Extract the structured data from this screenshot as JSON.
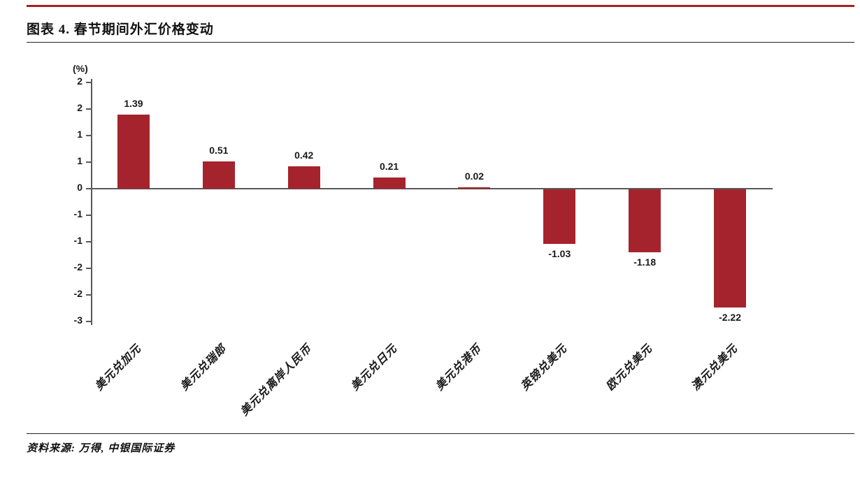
{
  "report": {
    "title": "图表 4. 春节期间外汇价格变动",
    "source_note": "资料来源: 万得, 中银国际证券"
  },
  "chart_data": {
    "type": "bar",
    "title": "图表 4. 春节期间外汇价格变动",
    "xlabel": "",
    "ylabel": "(%)",
    "categories": [
      "美元兑加元",
      "美元兑瑞郎",
      "美元兑离岸人民币",
      "美元兑日元",
      "美元兑港币",
      "英镑兑美元",
      "欧元兑美元",
      "澳元兑美元"
    ],
    "values": [
      1.39,
      0.51,
      0.42,
      0.21,
      0.02,
      -1.03,
      -1.18,
      -2.22
    ],
    "value_labels": [
      "1.39",
      "0.51",
      "0.42",
      "0.21",
      "0.02",
      "-1.03",
      "-1.18",
      "-2.22"
    ],
    "ylim": [
      -2.5,
      2.0
    ],
    "ytick_values": [
      2,
      1.5,
      1,
      0.5,
      0,
      -0.5,
      -1,
      -1.5,
      -2,
      -2.5
    ],
    "ytick_labels": [
      "2",
      "2",
      "1",
      "1",
      "0",
      "-1",
      "-1",
      "-2",
      "-2",
      "-3"
    ],
    "grid": false,
    "legend": null,
    "data_labels": true,
    "bar_color": "#a5232d",
    "axis_color": "#595959"
  },
  "colors": {
    "accent_red": "#a8201f",
    "bar_red": "#a5232d",
    "axis_gray": "#595959",
    "text_black": "#1a1a1a"
  }
}
